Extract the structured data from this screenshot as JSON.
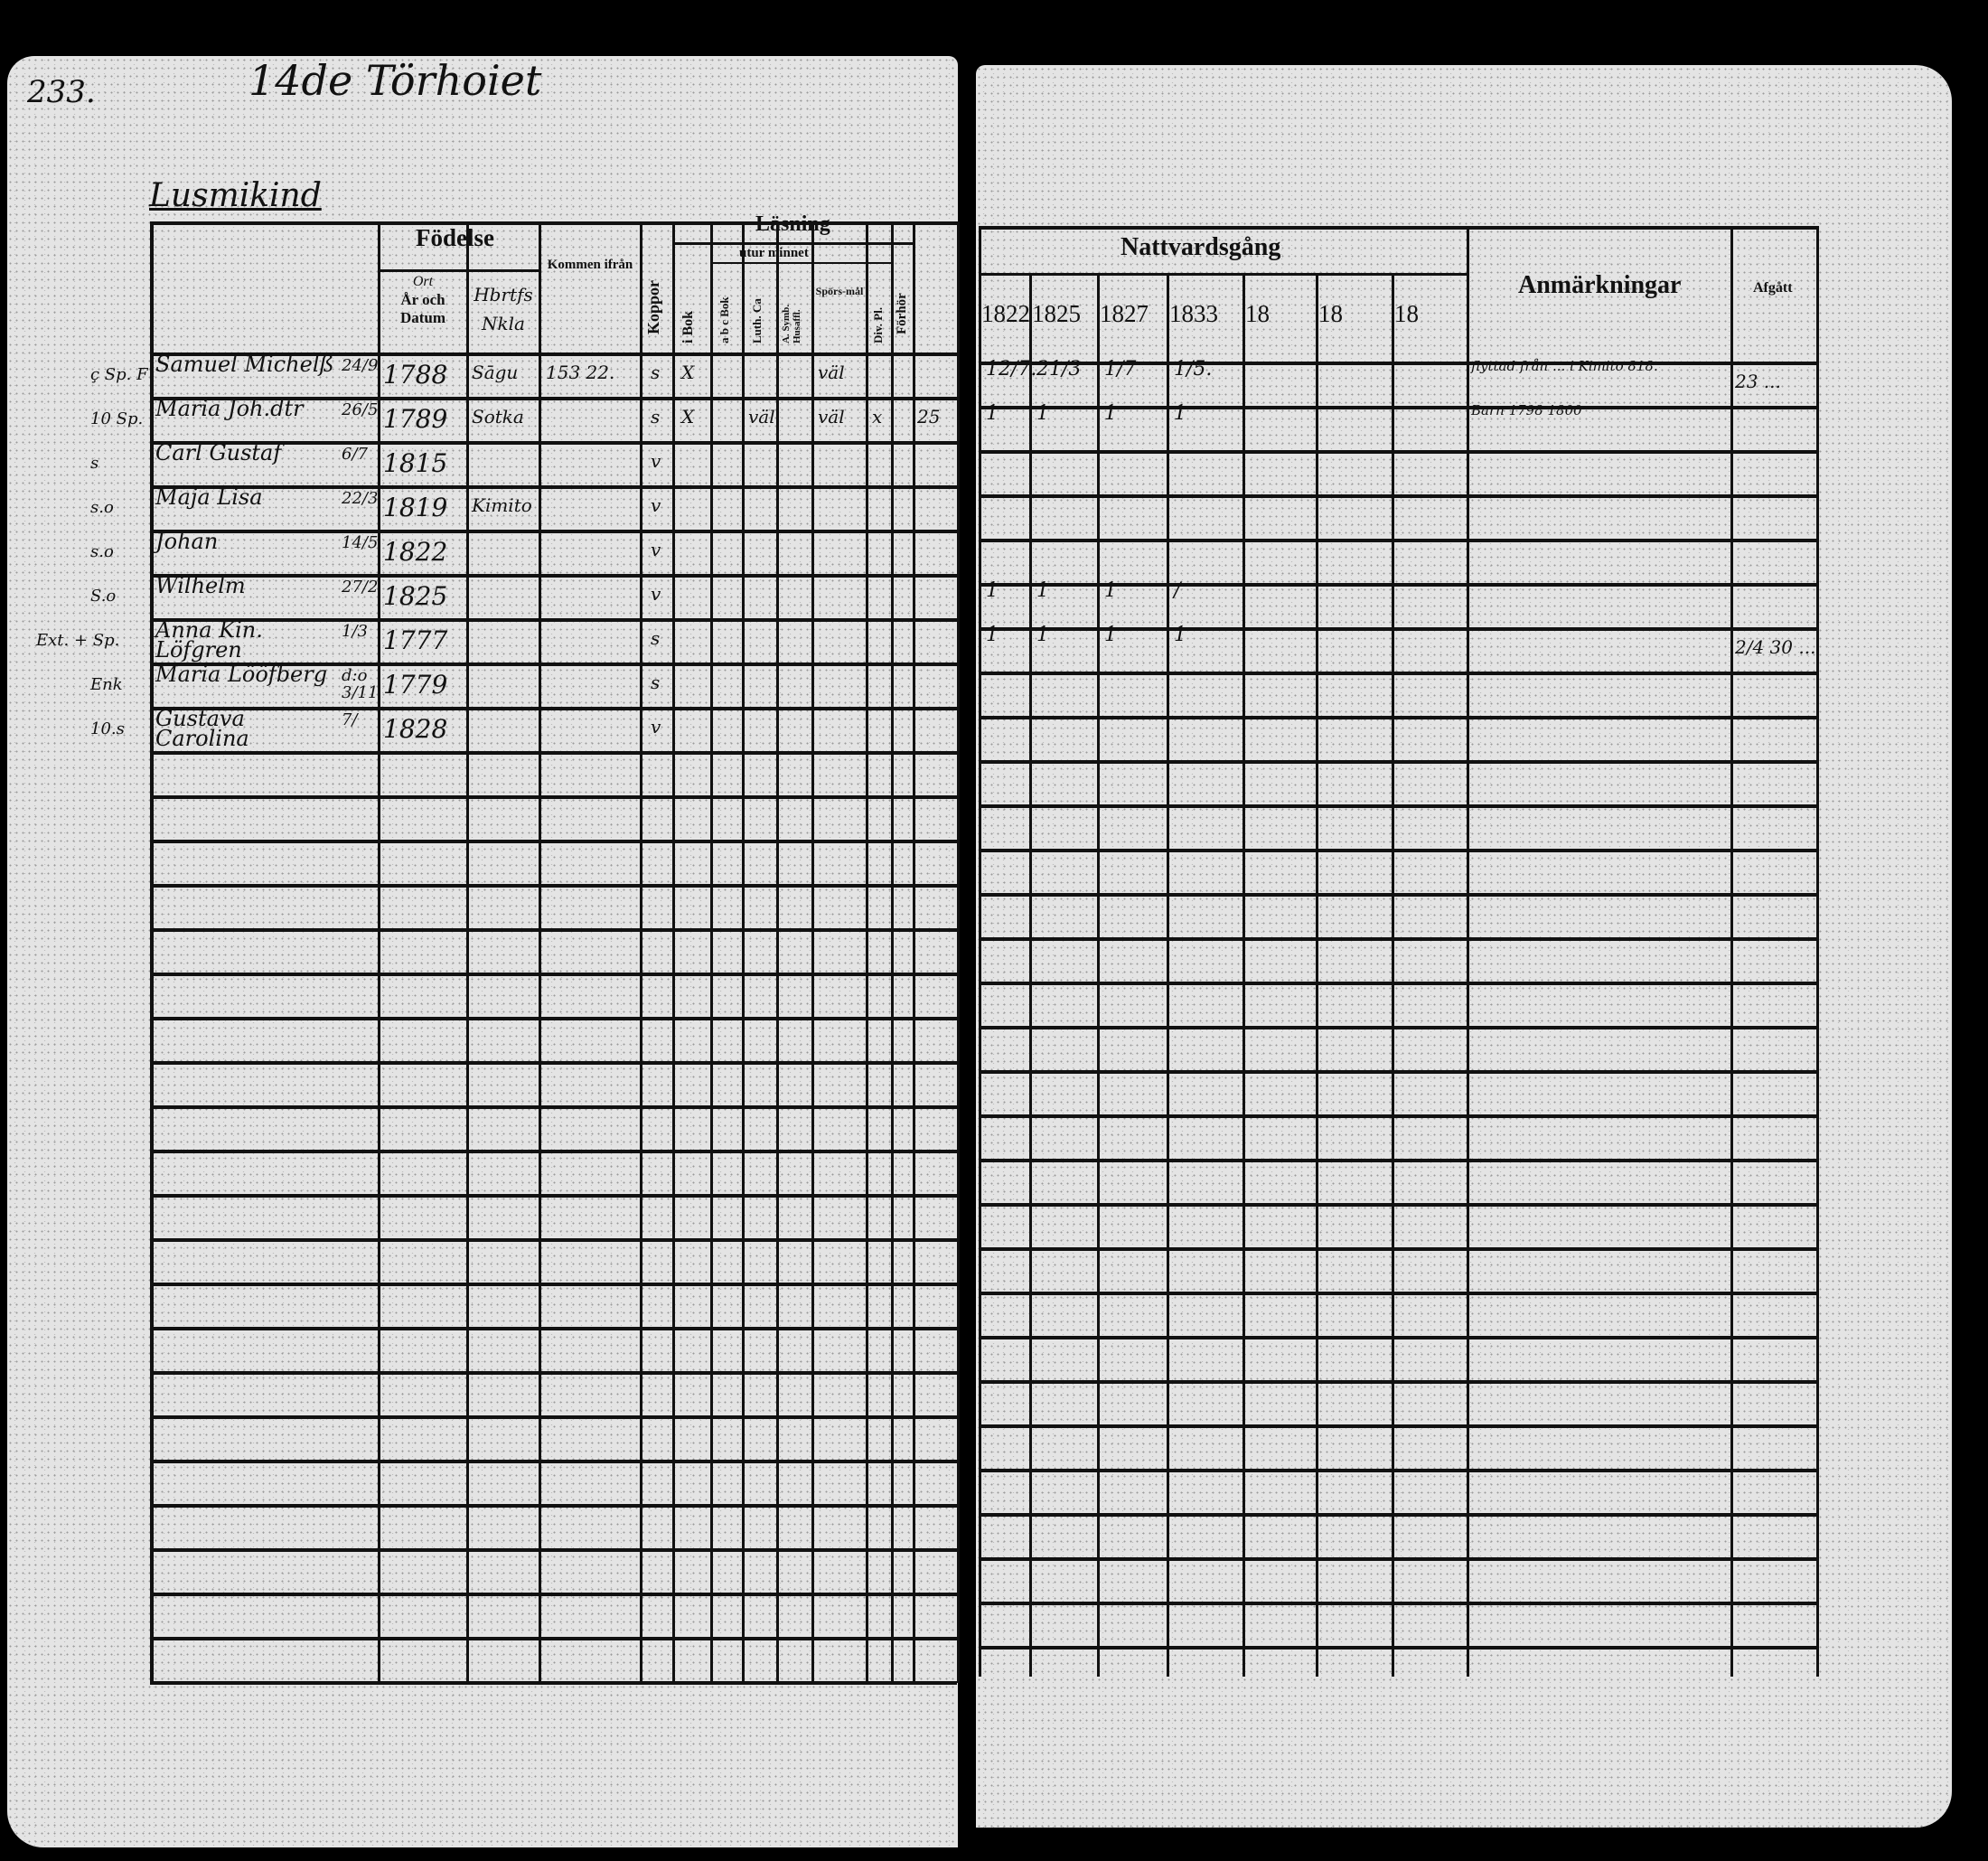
{
  "page_number": "233.",
  "farm_title": "14de Törhoiet",
  "household_label": "Lusmikind",
  "left_header": {
    "fodelse": "Födelse",
    "ort": "Ort",
    "ar_och_datum": "År och Datum",
    "socken_hand": "Hbrtfs Nkla",
    "kommen_ifran": "Kommen ifrån",
    "koppor": "Koppor",
    "lasning": "Läsning",
    "utur_minnet": "utur minnet",
    "i_bok": "i Bok",
    "abc_bok": "a b c Bok",
    "luth_ca": "Luth. Ca",
    "a_symb": "A. Symb. Husaffl.",
    "sporsmal": "Spörs-mål",
    "div_pl": "Div. Pl.",
    "forhor": "Förhör"
  },
  "right_header": {
    "nattvardsgang": "Nattvardsgång",
    "years": [
      "1822",
      "1825",
      "1827",
      "1833",
      "18",
      "18",
      "18"
    ],
    "anmarkningar": "Anmärkningar",
    "afgatt": "Afgått"
  },
  "left_rows": [
    {
      "prefix": "ç Sp. F",
      "name": "Samuel Michelß",
      "date": "24/9",
      "year": "1788",
      "socken": "Sāgu",
      "kommen": "153 22.",
      "koppor": "s",
      "bok": "X",
      "luth": "",
      "sporsmal": "väl",
      "div": "",
      "last": ""
    },
    {
      "prefix": "10 Sp.",
      "name": "Maria Joh.dtr",
      "date": "26/5",
      "year": "1789",
      "socken": "Sotka",
      "kommen": "",
      "koppor": "s",
      "bok": "X",
      "luth": "väl",
      "sporsmal": "väl",
      "div": "x",
      "last": "25"
    },
    {
      "prefix": "s",
      "name": "Carl Gustaf",
      "date": "6/7",
      "year": "1815",
      "socken": "",
      "kommen": "",
      "koppor": "v",
      "bok": "",
      "luth": "",
      "sporsmal": "",
      "div": "",
      "last": ""
    },
    {
      "prefix": "s.o",
      "name": "Maja Lisa",
      "date": "22/3",
      "year": "1819",
      "socken": "Kimito",
      "kommen": "",
      "koppor": "v",
      "bok": "",
      "luth": "",
      "sporsmal": "",
      "div": "",
      "last": ""
    },
    {
      "prefix": "s.o",
      "name": "Johan",
      "date": "14/5",
      "year": "1822",
      "socken": "",
      "kommen": "",
      "koppor": "v",
      "bok": "",
      "luth": "",
      "sporsmal": "",
      "div": "",
      "last": ""
    },
    {
      "prefix": "S.o",
      "name": "Wilhelm",
      "date": "27/2",
      "year": "1825",
      "socken": "",
      "kommen": "",
      "koppor": "v",
      "bok": "",
      "luth": "",
      "sporsmal": "",
      "div": "",
      "last": ""
    },
    {
      "prefix": "Ext. + Sp.",
      "name": "Anna Kin. Löfgren",
      "date": "1/3",
      "year": "1777",
      "socken": "",
      "kommen": "",
      "koppor": "s",
      "bok": "",
      "luth": "",
      "sporsmal": "",
      "div": "",
      "last": ""
    },
    {
      "prefix": "Enk",
      "name": "Maria Lööfberg",
      "date": "d:o 3/11",
      "year": "1779",
      "socken": "",
      "kommen": "",
      "koppor": "s",
      "bok": "",
      "luth": "",
      "sporsmal": "",
      "div": "",
      "last": ""
    },
    {
      "prefix": "10.s",
      "name": "Gustava Carolina",
      "date": "7/",
      "year": "1828",
      "socken": "",
      "kommen": "",
      "koppor": "v",
      "bok": "",
      "luth": "",
      "sporsmal": "",
      "div": "",
      "last": ""
    }
  ],
  "right_rows": [
    {
      "marks": [
        "12/7.",
        "21/3",
        "1/7",
        "1/5."
      ],
      "anmarkning": "flyttad från ... i Kimito 818.",
      "afgatt": "23 ... "
    },
    {
      "marks": [
        "1",
        "1",
        "1",
        "1"
      ],
      "anmarkning": "Barn 1798 1800",
      "afgatt": ""
    },
    {
      "marks": [
        "",
        "",
        "",
        ""
      ],
      "anmarkning": "",
      "afgatt": ""
    },
    {
      "marks": [
        "",
        "",
        "",
        ""
      ],
      "anmarkning": "",
      "afgatt": ""
    },
    {
      "marks": [
        "",
        "",
        "",
        ""
      ],
      "anmarkning": "",
      "afgatt": ""
    },
    {
      "marks": [
        "1",
        "1",
        "1",
        "/"
      ],
      "anmarkning": "",
      "afgatt": ""
    },
    {
      "marks": [
        "1",
        "1",
        "1",
        "1"
      ],
      "anmarkning": "",
      "afgatt": "2/4 30 ..."
    }
  ]
}
